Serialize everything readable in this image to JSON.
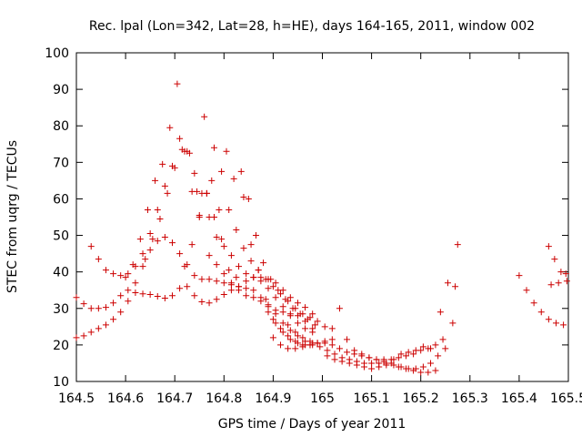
{
  "chart_data": {
    "type": "scatter",
    "title": "Rec. lpal (Lon=342, Lat=28, h=HE), days 164-165, 2011, window 002",
    "xlabel": "GPS time / Days of year 2011",
    "ylabel": "STEC from uqrg / TECUs",
    "xlim": [
      164.5,
      165.5
    ],
    "ylim": [
      10,
      100
    ],
    "x_ticks": [
      164.5,
      164.6,
      164.7,
      164.8,
      164.9,
      165,
      165.1,
      165.2,
      165.3,
      165.4,
      165.5
    ],
    "x_tick_labels": [
      "164.5",
      "164.6",
      "164.7",
      "164.8",
      "164.9",
      "165",
      "165.1",
      "165.2",
      "165.3",
      "165.4",
      "165.5"
    ],
    "y_ticks": [
      10,
      20,
      30,
      40,
      50,
      60,
      70,
      80,
      90,
      100
    ],
    "y_tick_labels": [
      "10",
      "20",
      "30",
      "40",
      "50",
      "60",
      "70",
      "80",
      "90",
      "100"
    ],
    "grid": false,
    "marker": "+",
    "color": "#cc0000",
    "series": [
      {
        "x": [
          164.5,
          164.515,
          164.53,
          164.545,
          164.56,
          164.575,
          164.59,
          164.605,
          164.62,
          164.635,
          164.65,
          164.665,
          164.68,
          164.695,
          164.71,
          164.725,
          164.74,
          164.755,
          164.77,
          164.785,
          164.8,
          164.815,
          164.83,
          164.845,
          164.86,
          164.875,
          164.89,
          164.905,
          164.92,
          164.935,
          164.95,
          164.965,
          164.98
        ],
        "y": [
          33,
          31.3,
          30,
          30,
          30.3,
          31.5,
          33.5,
          35,
          34.3,
          34,
          33.8,
          33.3,
          32.8,
          33.5,
          35.5,
          36,
          33.5,
          31.8,
          31.5,
          32.5,
          33.8,
          35,
          36,
          37.5,
          38.5,
          38.5,
          38,
          37,
          35,
          33,
          31.5,
          30.3,
          28.5
        ]
      },
      {
        "x": [
          164.5,
          164.515,
          164.53,
          164.545,
          164.56,
          164.575,
          164.59,
          164.605,
          164.62,
          164.635,
          164.65,
          164.665,
          164.68,
          164.695,
          164.71,
          164.725,
          164.74,
          164.755,
          164.77,
          164.785,
          164.8,
          164.815,
          164.83,
          164.845,
          164.86,
          164.875,
          164.89,
          164.905,
          164.92,
          164.935,
          164.95,
          164.965,
          164.98
        ],
        "y": [
          22,
          22.5,
          23.5,
          24.5,
          25.5,
          27,
          29,
          32,
          37,
          41.5,
          46,
          48.5,
          49.5,
          48,
          45,
          42,
          39,
          38,
          38,
          37.5,
          37,
          36.5,
          36,
          35.5,
          35,
          33,
          31,
          28.5,
          26,
          24,
          22.5,
          21,
          20.5
        ]
      },
      {
        "x": [
          164.53,
          164.545,
          164.56,
          164.575,
          164.59,
          164.605,
          164.62,
          164.635,
          164.65,
          164.665,
          164.68,
          164.695,
          164.71,
          164.725,
          164.74,
          164.755,
          164.77,
          164.785,
          164.8,
          164.815,
          164.83,
          164.845,
          164.86,
          164.875,
          164.89,
          164.905,
          164.92,
          164.935,
          164.95,
          164.965,
          164.98
        ],
        "y": [
          47,
          43.5,
          40.5,
          39.5,
          39,
          39.5,
          41.5,
          45,
          50.5,
          57,
          63.5,
          69,
          76.5,
          73,
          67,
          61.5,
          55,
          49.5,
          47,
          44.5,
          41.5,
          39.5,
          38.5,
          37.5,
          35.5,
          33,
          30.5,
          28,
          26,
          24.5,
          23.5
        ]
      },
      {
        "x": [
          164.6,
          164.615,
          164.63,
          164.645,
          164.66,
          164.675,
          164.69,
          164.705,
          164.72,
          164.735,
          164.75,
          164.765,
          164.78,
          164.795,
          164.81,
          164.825,
          164.84,
          164.855,
          164.87,
          164.885,
          164.9,
          164.915,
          164.93,
          164.945,
          164.96,
          164.975,
          164.99
        ],
        "y": [
          38.5,
          42,
          49,
          57,
          65,
          69.5,
          79.5,
          91.5,
          73,
          62,
          55.5,
          61.5,
          74,
          67.5,
          57,
          51.5,
          46.5,
          43,
          40.5,
          38,
          36,
          34,
          32,
          30,
          28.5,
          27.5,
          26.5
        ]
      },
      {
        "x": [
          164.64,
          164.655,
          164.67,
          164.685,
          164.7,
          164.715,
          164.73,
          164.745,
          164.76,
          164.775,
          164.79,
          164.805,
          164.82,
          164.835,
          164.85,
          164.865,
          164.88,
          164.895,
          164.91,
          164.925,
          164.94,
          164.955,
          164.97,
          164.985
        ],
        "y": [
          43.5,
          49,
          54.5,
          61.5,
          68.5,
          73.5,
          72.5,
          62,
          82.5,
          65,
          57,
          73,
          65.5,
          67.5,
          60,
          50,
          42.5,
          38,
          35,
          32.5,
          30,
          28.5,
          27,
          25.5
        ]
      },
      {
        "x": [
          164.72,
          164.735,
          164.75,
          164.765,
          164.78,
          164.795,
          164.81,
          164.825,
          164.84,
          164.855,
          164.87,
          164.885,
          164.9,
          164.915,
          164.93,
          164.945,
          164.96,
          164.975,
          164.99,
          165.005,
          165.02
        ],
        "y": [
          41.5,
          47.5,
          55,
          61.5,
          55,
          49,
          40.5,
          38.5,
          60.5,
          47.5,
          40.5,
          32.5,
          27,
          24.5,
          22.5,
          21,
          20,
          20,
          20.5,
          21,
          21.5
        ]
      },
      {
        "x": [
          164.77,
          164.785,
          164.8,
          164.815,
          164.83,
          164.845,
          164.86,
          164.875,
          164.89,
          164.905,
          164.92,
          164.935,
          164.95,
          164.965,
          164.98
        ],
        "y": [
          44.5,
          42,
          39.5,
          37,
          35,
          33.5,
          33,
          32,
          30.5,
          29.5,
          29,
          28.5,
          28,
          26.5,
          24.5
        ]
      },
      {
        "x": [
          164.89,
          164.905,
          164.92,
          164.935,
          164.95,
          164.965,
          164.98,
          164.995,
          165.01,
          165.025,
          165.04,
          165.055,
          165.07,
          165.085,
          165.1,
          165.115,
          165.13,
          165.145,
          165.16,
          165.175,
          165.19,
          165.205,
          165.22,
          165.235,
          165.25
        ],
        "y": [
          29,
          26,
          23.5,
          21.5,
          20.5,
          20,
          20,
          19.5,
          18.5,
          17.5,
          16.5,
          16,
          15.5,
          15,
          15,
          15,
          15,
          14.5,
          14,
          13.5,
          13.5,
          14,
          15,
          17,
          19
        ]
      },
      {
        "x": [
          164.9,
          164.915,
          164.93,
          164.945,
          164.96,
          164.975,
          164.99,
          165.005,
          165.02,
          165.035,
          165.05,
          165.065,
          165.08,
          165.095,
          165.11,
          165.125,
          165.14,
          165.155,
          165.17,
          165.185,
          165.2,
          165.215,
          165.23
        ],
        "y": [
          22,
          20,
          19,
          19,
          19.5,
          20,
          20.5,
          20.5,
          20,
          19,
          18,
          17.5,
          17,
          16.5,
          16,
          15.5,
          15,
          14,
          13.5,
          13,
          12.5,
          12.5,
          13
        ]
      },
      {
        "x": [
          164.93,
          164.945,
          164.96,
          164.975,
          164.99,
          165.005,
          165.02,
          165.035,
          165.05,
          165.065,
          165.08,
          165.095,
          165.11,
          165.125,
          165.14,
          165.155,
          165.17,
          165.185,
          165.2,
          165.215,
          165.23,
          165.245
        ],
        "y": [
          25.5,
          23.5,
          22,
          21,
          20.5,
          25,
          24.5,
          30,
          21.5,
          18.5,
          17.5,
          16.5,
          16,
          16,
          16,
          16.5,
          17,
          17.5,
          18.5,
          19,
          20,
          21.5
        ]
      },
      {
        "x": [
          165.01,
          165.025,
          165.04,
          165.055,
          165.07,
          165.085,
          165.1,
          165.115,
          165.13,
          165.145,
          165.16,
          165.175,
          165.19,
          165.205,
          165.22
        ],
        "y": [
          17,
          16,
          15.5,
          15,
          14.5,
          14,
          13.5,
          14,
          14.5,
          16,
          17.5,
          18,
          18.5,
          19.5,
          19
        ]
      },
      {
        "x": [
          165.24,
          165.255,
          165.265,
          165.275
        ],
        "y": [
          29,
          37,
          26,
          47.5
        ]
      },
      {
        "x": [
          165.27
        ],
        "y": [
          36
        ]
      },
      {
        "x": [
          165.4,
          165.415,
          165.43,
          165.445,
          165.46,
          165.475,
          165.49
        ],
        "y": [
          39,
          35,
          31.5,
          29,
          27,
          26,
          25.5
        ]
      },
      {
        "x": [
          165.46,
          165.472,
          165.485,
          165.497
        ],
        "y": [
          47,
          43.5,
          40,
          37.5
        ]
      },
      {
        "x": [
          165.465,
          165.48,
          165.495
        ],
        "y": [
          36.5,
          37,
          39.5
        ]
      }
    ]
  }
}
